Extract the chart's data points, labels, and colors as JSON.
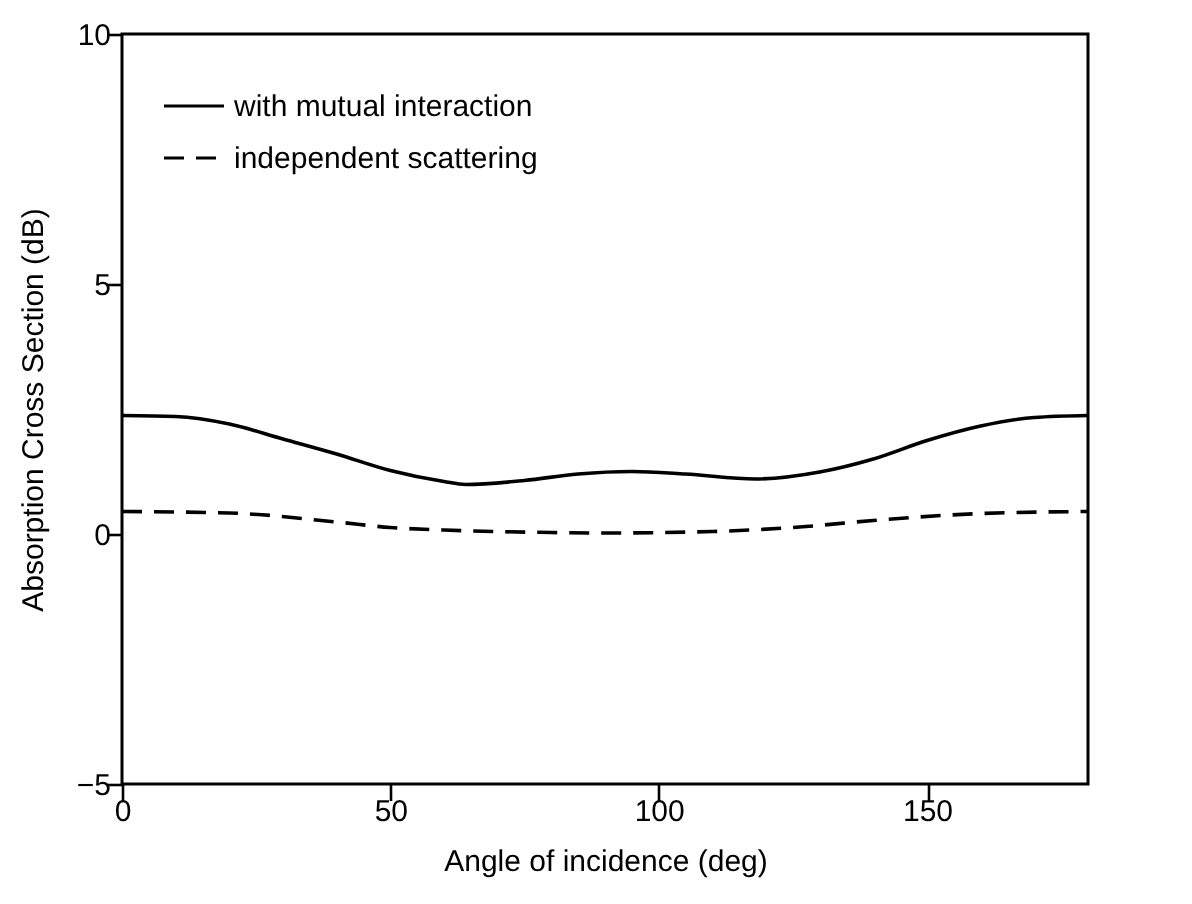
{
  "chart_data": {
    "type": "line",
    "xlabel": "Angle of incidence (deg)",
    "ylabel": "Absorption Cross Section (dB)",
    "xlim": [
      0,
      180
    ],
    "xticks": [
      0,
      50,
      100,
      150
    ],
    "ylim": [
      -5,
      10
    ],
    "yticks": [
      -5,
      0,
      5,
      10
    ],
    "legend": "top left",
    "grid": false,
    "series": [
      {
        "name": "with mutual interaction",
        "color": "#000000",
        "line_style": "solid",
        "x": [
          0,
          10,
          20,
          30,
          40,
          50,
          60,
          64,
          75,
          85,
          95,
          105,
          118,
          130,
          140,
          150,
          160,
          170,
          180
        ],
        "values": [
          2.37,
          2.35,
          2.2,
          1.9,
          1.6,
          1.27,
          1.05,
          0.99,
          1.07,
          1.2,
          1.25,
          1.2,
          1.1,
          1.24,
          1.5,
          1.87,
          2.16,
          2.33,
          2.37
        ]
      },
      {
        "name": "independent scattering",
        "color": "#000000",
        "line_style": "dashed",
        "x": [
          0,
          20,
          40,
          50,
          60,
          80,
          90,
          110,
          125,
          140,
          160,
          180
        ],
        "values": [
          0.45,
          0.42,
          0.24,
          0.13,
          0.08,
          0.03,
          0.02,
          0.05,
          0.13,
          0.27,
          0.41,
          0.45
        ]
      }
    ]
  }
}
